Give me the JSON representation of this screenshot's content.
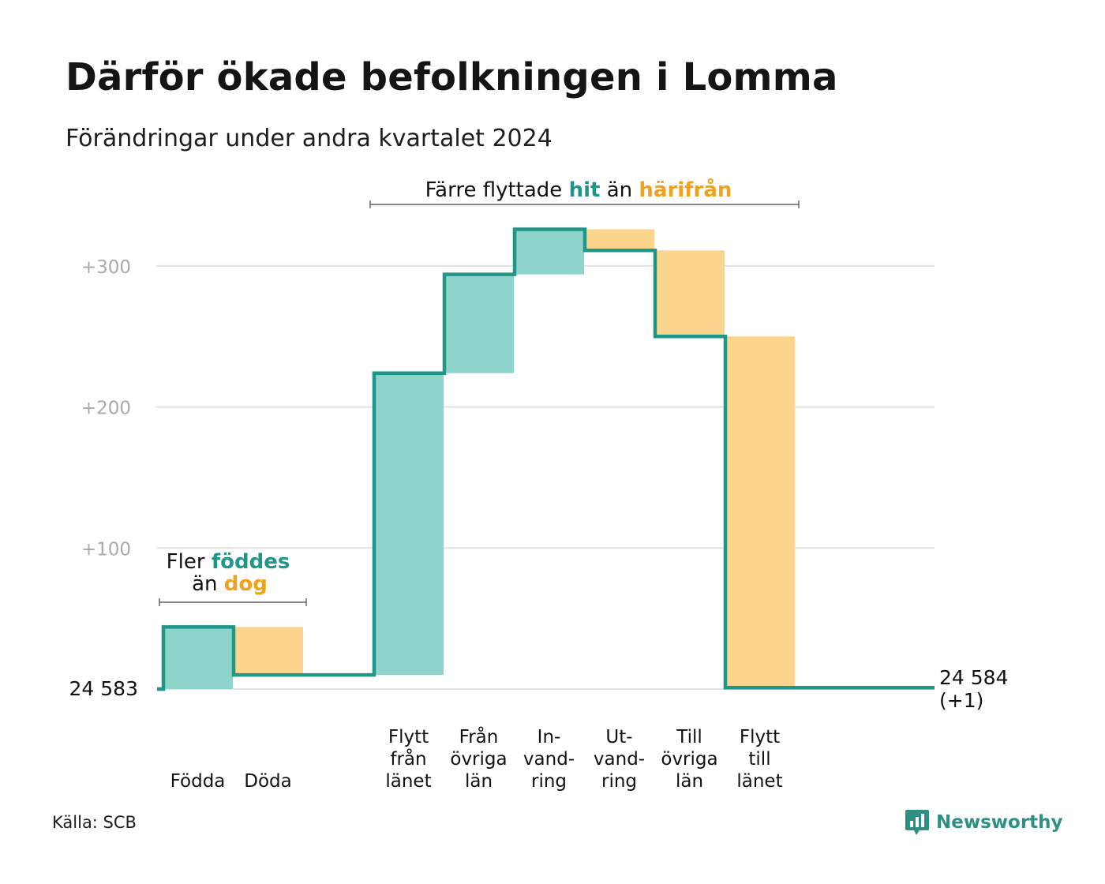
{
  "title": "Därför ökade befolkningen i Lomma",
  "subtitle": "Förändringar under andra kvartalet 2024",
  "source": "Källa: SCB",
  "logo": {
    "text": "Newsworthy",
    "icon": "newsworthy-logo-icon"
  },
  "colors": {
    "increase_fill": "#8ed4cb",
    "decrease_fill": "#fbd58e",
    "line": "#1f9688",
    "hit_text": "#1f9688",
    "away_text": "#f0a11e",
    "grid": "#e2e2e6",
    "tick_text": "#aaaaaa"
  },
  "annotations": {
    "births": {
      "line1_prefix": "Fler ",
      "line1_highlight": "föddes",
      "line2_prefix": "än ",
      "line2_highlight": "dog"
    },
    "moves": {
      "prefix": "Färre flyttade ",
      "highlight1": "hit",
      "middle": " än ",
      "highlight2": "härifrån"
    }
  },
  "chart_data": {
    "type": "waterfall",
    "start_label": "24  583",
    "end_label": "24 584",
    "end_change_label": "(+1)",
    "yticks": [
      100,
      200,
      300
    ],
    "ytick_labels": [
      "+100",
      "+200",
      "+300"
    ],
    "ylim": [
      0,
      325
    ],
    "grid": true,
    "steps": [
      {
        "label": [
          "Födda"
        ],
        "value": 44,
        "kind": "increase"
      },
      {
        "label": [
          "Döda"
        ],
        "value": -34,
        "kind": "decrease"
      },
      {
        "label": [],
        "value": 0,
        "kind": "spacer"
      },
      {
        "label": [
          "Flytt",
          "från",
          "länet"
        ],
        "value": 214,
        "kind": "increase"
      },
      {
        "label": [
          "Från",
          "övriga",
          "län"
        ],
        "value": 70,
        "kind": "increase"
      },
      {
        "label": [
          "In-",
          "vand-",
          "ring"
        ],
        "value": 32,
        "kind": "increase"
      },
      {
        "label": [
          "Ut-",
          "vand-",
          "ring"
        ],
        "value": -15,
        "kind": "decrease"
      },
      {
        "label": [
          "Till",
          "övriga",
          "län"
        ],
        "value": -61,
        "kind": "decrease"
      },
      {
        "label": [
          "Flytt",
          "till",
          "länet"
        ],
        "value": -249,
        "kind": "decrease"
      }
    ],
    "net_change": 1
  }
}
